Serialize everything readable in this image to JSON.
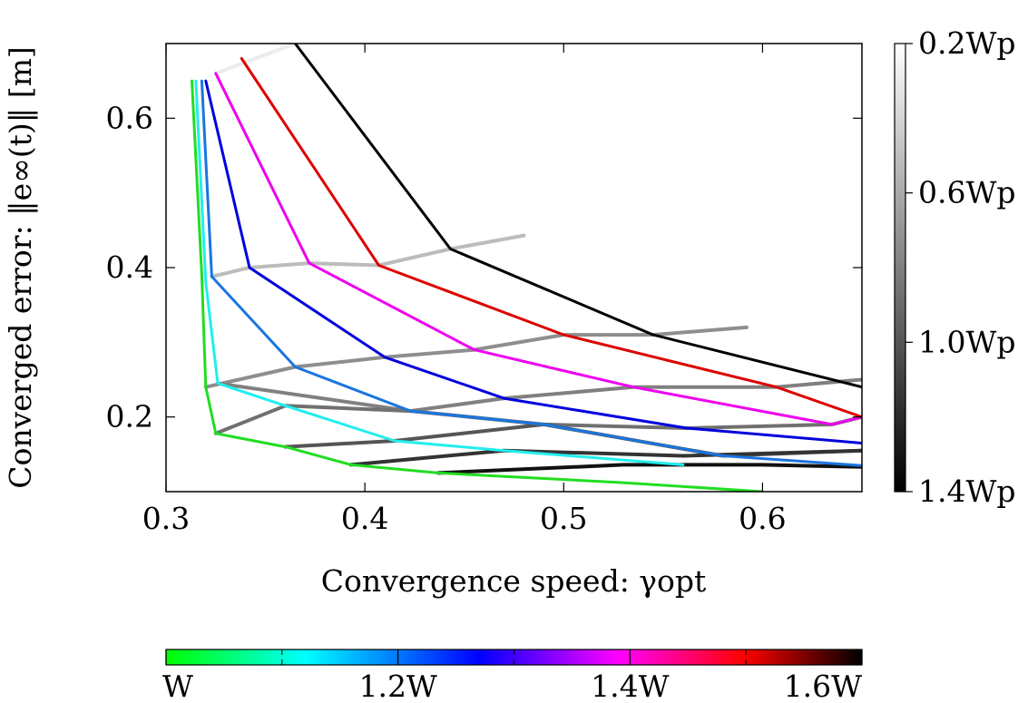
{
  "chart_data": {
    "type": "line",
    "xlabel": "Convergence speed: γopt",
    "ylabel": "Converged error: ‖e∞(t)‖ [m]",
    "xlim": [
      0.3,
      0.65
    ],
    "ylim": [
      0.1,
      0.7
    ],
    "xticks": [
      0.3,
      0.4,
      0.5,
      0.6
    ],
    "xtick_labels": [
      "0.3",
      "0.4",
      "0.5",
      "0.6"
    ],
    "yticks": [
      0.2,
      0.4,
      0.6
    ],
    "ytick_labels": [
      "0.2",
      "0.4",
      "0.6"
    ],
    "grid": false,
    "colorbar_right": {
      "quantity": "Wp scaling",
      "tick_labels": [
        "0.2Wp",
        "0.6Wp",
        "1.0Wp",
        "1.4Wp"
      ],
      "colors": [
        "#ffffff",
        "#000000"
      ]
    },
    "colorbar_bottom": {
      "quantity": "W scaling",
      "tick_labels": [
        "W",
        "1.2W",
        "1.4W",
        "1.6W"
      ],
      "colors": [
        "#00ff00",
        "#00ffff",
        "#0000ff",
        "#ff00ff",
        "#ff0000",
        "#000000"
      ]
    },
    "series_W": [
      {
        "scale": 1.0,
        "color": "#22dd22",
        "points": [
          [
            0.313,
            0.65
          ],
          [
            0.318,
            0.39
          ],
          [
            0.32,
            0.24
          ],
          [
            0.325,
            0.178
          ],
          [
            0.36,
            0.16
          ],
          [
            0.393,
            0.136
          ],
          [
            0.437,
            0.125
          ],
          [
            0.53,
            0.112
          ],
          [
            0.6,
            0.1
          ]
        ]
      },
      {
        "scale": 1.1,
        "color": "#22eeee",
        "points": [
          [
            0.315,
            0.65
          ],
          [
            0.32,
            0.38
          ],
          [
            0.326,
            0.245
          ],
          [
            0.36,
            0.215
          ],
          [
            0.415,
            0.168
          ],
          [
            0.47,
            0.155
          ],
          [
            0.56,
            0.136
          ]
        ]
      },
      {
        "scale": 1.2,
        "color": "#1a75e0",
        "points": [
          [
            0.318,
            0.65
          ],
          [
            0.323,
            0.388
          ],
          [
            0.365,
            0.267
          ],
          [
            0.423,
            0.208
          ],
          [
            0.49,
            0.19
          ],
          [
            0.58,
            0.148
          ],
          [
            0.65,
            0.135
          ]
        ]
      },
      {
        "scale": 1.3,
        "color": "#0000dd",
        "points": [
          [
            0.32,
            0.65
          ],
          [
            0.342,
            0.4
          ],
          [
            0.41,
            0.28
          ],
          [
            0.47,
            0.225
          ],
          [
            0.562,
            0.185
          ],
          [
            0.65,
            0.165
          ]
        ]
      },
      {
        "scale": 1.4,
        "color": "#ee00ee",
        "points": [
          [
            0.325,
            0.66
          ],
          [
            0.372,
            0.406
          ],
          [
            0.455,
            0.29
          ],
          [
            0.535,
            0.24
          ],
          [
            0.635,
            0.19
          ],
          [
            0.65,
            0.2
          ]
        ]
      },
      {
        "scale": 1.5,
        "color": "#dd0000",
        "points": [
          [
            0.338,
            0.68
          ],
          [
            0.407,
            0.403
          ],
          [
            0.5,
            0.31
          ],
          [
            0.607,
            0.24
          ],
          [
            0.65,
            0.2
          ]
        ]
      },
      {
        "scale": 1.6,
        "color": "#000000",
        "points": [
          [
            0.365,
            0.7
          ],
          [
            0.443,
            0.425
          ],
          [
            0.545,
            0.31
          ],
          [
            0.65,
            0.24
          ]
        ]
      }
    ],
    "series_Wp": [
      {
        "scale": 0.2,
        "color": "#ececec",
        "points": [
          [
            0.325,
            0.66
          ],
          [
            0.365,
            0.7
          ]
        ]
      },
      {
        "scale": 0.6,
        "color": "#bcbcbc",
        "points": [
          [
            0.323,
            0.388
          ],
          [
            0.342,
            0.4
          ],
          [
            0.372,
            0.406
          ],
          [
            0.407,
            0.403
          ],
          [
            0.443,
            0.425
          ],
          [
            0.48,
            0.443
          ]
        ]
      },
      {
        "scale": 0.9,
        "color": "#8e8e8e",
        "points": [
          [
            0.32,
            0.24
          ],
          [
            0.365,
            0.267
          ],
          [
            0.41,
            0.28
          ],
          [
            0.455,
            0.29
          ],
          [
            0.5,
            0.31
          ],
          [
            0.545,
            0.31
          ],
          [
            0.592,
            0.32
          ]
        ]
      },
      {
        "scale": 1.0,
        "color": "#808080",
        "points": [
          [
            0.326,
            0.245
          ],
          [
            0.423,
            0.208
          ],
          [
            0.47,
            0.225
          ],
          [
            0.535,
            0.24
          ],
          [
            0.607,
            0.24
          ],
          [
            0.65,
            0.25
          ]
        ]
      },
      {
        "scale": 1.1,
        "color": "#707070",
        "points": [
          [
            0.325,
            0.178
          ],
          [
            0.36,
            0.215
          ],
          [
            0.423,
            0.208
          ],
          [
            0.49,
            0.19
          ],
          [
            0.562,
            0.185
          ],
          [
            0.635,
            0.19
          ],
          [
            0.65,
            0.2
          ]
        ]
      },
      {
        "scale": 1.2,
        "color": "#555555",
        "points": [
          [
            0.36,
            0.16
          ],
          [
            0.415,
            0.168
          ],
          [
            0.49,
            0.19
          ],
          [
            0.58,
            0.148
          ],
          [
            0.65,
            0.155
          ]
        ]
      },
      {
        "scale": 1.3,
        "color": "#333333",
        "points": [
          [
            0.393,
            0.136
          ],
          [
            0.47,
            0.155
          ],
          [
            0.56,
            0.148
          ],
          [
            0.65,
            0.155
          ]
        ]
      },
      {
        "scale": 1.4,
        "color": "#111111",
        "points": [
          [
            0.437,
            0.125
          ],
          [
            0.53,
            0.136
          ],
          [
            0.6,
            0.136
          ],
          [
            0.65,
            0.133
          ]
        ]
      }
    ]
  }
}
